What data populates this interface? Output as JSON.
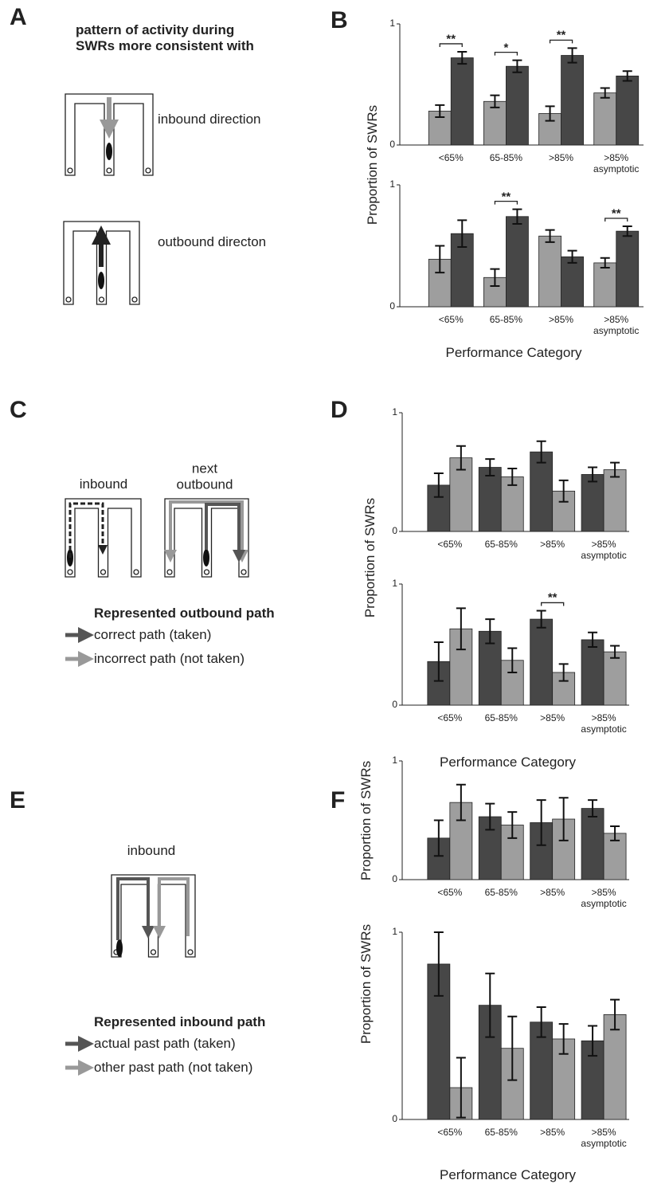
{
  "panel_labels": [
    "A",
    "B",
    "C",
    "D",
    "E",
    "F"
  ],
  "diagrams": {
    "A": {
      "heading": [
        "pattern of activity during",
        "SWRs more consistent with"
      ],
      "items": [
        "inbound direction",
        "outbound directon"
      ]
    },
    "C": {
      "maze_labels": [
        "inbound",
        "next outbound"
      ],
      "legend_title": "Represented outbound path",
      "legend": [
        "correct path (taken)",
        "incorrect path (not taken)"
      ]
    },
    "E": {
      "maze_labels": [
        "inbound"
      ],
      "legend_title": "Represented inbound path",
      "legend": [
        "actual past path (taken)",
        "other past path (not taken)"
      ]
    }
  },
  "chart_data": [
    {
      "type": "bar",
      "categories": [
        "<65%",
        "65-85%",
        ">85%",
        ">85% asymptotic"
      ],
      "ylim": [
        0,
        1
      ],
      "yticks": [
        0,
        1
      ],
      "ylabel": "Proportion of SWRs",
      "series": [
        {
          "color": "#9e9e9e",
          "values": [
            0.28,
            0.36,
            0.26,
            0.43
          ],
          "errors": [
            0.05,
            0.05,
            0.06,
            0.04
          ]
        },
        {
          "color": "#474747",
          "values": [
            0.72,
            0.65,
            0.74,
            0.57
          ],
          "errors": [
            0.05,
            0.05,
            0.06,
            0.04
          ]
        }
      ],
      "significance": [
        "**",
        "*",
        "**",
        null
      ]
    },
    {
      "type": "bar",
      "categories": [
        "<65%",
        "65-85%",
        ">85%",
        ">85% asymptotic"
      ],
      "ylim": [
        0,
        1
      ],
      "yticks": [
        0,
        1
      ],
      "xlabel": "Performance Category",
      "series": [
        {
          "color": "#9e9e9e",
          "values": [
            0.39,
            0.24,
            0.58,
            0.36
          ],
          "errors": [
            0.11,
            0.07,
            0.05,
            0.04
          ]
        },
        {
          "color": "#474747",
          "values": [
            0.6,
            0.74,
            0.41,
            0.62
          ],
          "errors": [
            0.11,
            0.06,
            0.05,
            0.04
          ]
        }
      ],
      "significance": [
        null,
        "**",
        null,
        "**"
      ]
    },
    {
      "type": "bar",
      "categories": [
        "<65%",
        "65-85%",
        ">85%",
        ">85% asymptotic"
      ],
      "ylim": [
        0,
        1
      ],
      "yticks": [
        0,
        1
      ],
      "ylabel": "Proportion of SWRs",
      "series": [
        {
          "color": "#474747",
          "values": [
            0.39,
            0.54,
            0.67,
            0.48
          ],
          "errors": [
            0.1,
            0.07,
            0.09,
            0.06
          ]
        },
        {
          "color": "#9e9e9e",
          "values": [
            0.62,
            0.46,
            0.34,
            0.52
          ],
          "errors": [
            0.1,
            0.07,
            0.09,
            0.06
          ]
        }
      ]
    },
    {
      "type": "bar",
      "categories": [
        "<65%",
        "65-85%",
        ">85%",
        ">85% asymptotic"
      ],
      "ylim": [
        0,
        1
      ],
      "yticks": [
        0,
        1
      ],
      "xlabel": "Performance Category",
      "series": [
        {
          "color": "#474747",
          "values": [
            0.36,
            0.61,
            0.71,
            0.54
          ],
          "errors": [
            0.16,
            0.1,
            0.07,
            0.06
          ]
        },
        {
          "color": "#9e9e9e",
          "values": [
            0.63,
            0.37,
            0.27,
            0.44
          ],
          "errors": [
            0.17,
            0.1,
            0.07,
            0.05
          ]
        }
      ],
      "significance": [
        null,
        null,
        "**",
        null
      ]
    },
    {
      "type": "bar",
      "categories": [
        "<65%",
        "65-85%",
        ">85%",
        ">85% asymptotic"
      ],
      "ylim": [
        0,
        1
      ],
      "yticks": [
        0,
        1
      ],
      "ylabel": "Proportion of SWRs",
      "series": [
        {
          "color": "#474747",
          "values": [
            0.35,
            0.53,
            0.48,
            0.6
          ],
          "errors": [
            0.15,
            0.11,
            0.19,
            0.07
          ]
        },
        {
          "color": "#9e9e9e",
          "values": [
            0.65,
            0.46,
            0.51,
            0.39
          ],
          "errors": [
            0.15,
            0.11,
            0.18,
            0.06
          ]
        }
      ]
    },
    {
      "type": "bar",
      "categories": [
        "<65%",
        "65-85%",
        ">85%",
        ">85% asymptotic"
      ],
      "ylim": [
        0,
        1
      ],
      "yticks": [
        0,
        1
      ],
      "ylabel": "Proportion of SWRs",
      "xlabel": "Performance Category",
      "series": [
        {
          "color": "#474747",
          "values": [
            0.83,
            0.61,
            0.52,
            0.42
          ],
          "errors": [
            0.17,
            0.17,
            0.08,
            0.08
          ]
        },
        {
          "color": "#9e9e9e",
          "values": [
            0.17,
            0.38,
            0.43,
            0.56
          ],
          "errors": [
            0.16,
            0.17,
            0.08,
            0.08
          ]
        }
      ]
    }
  ]
}
